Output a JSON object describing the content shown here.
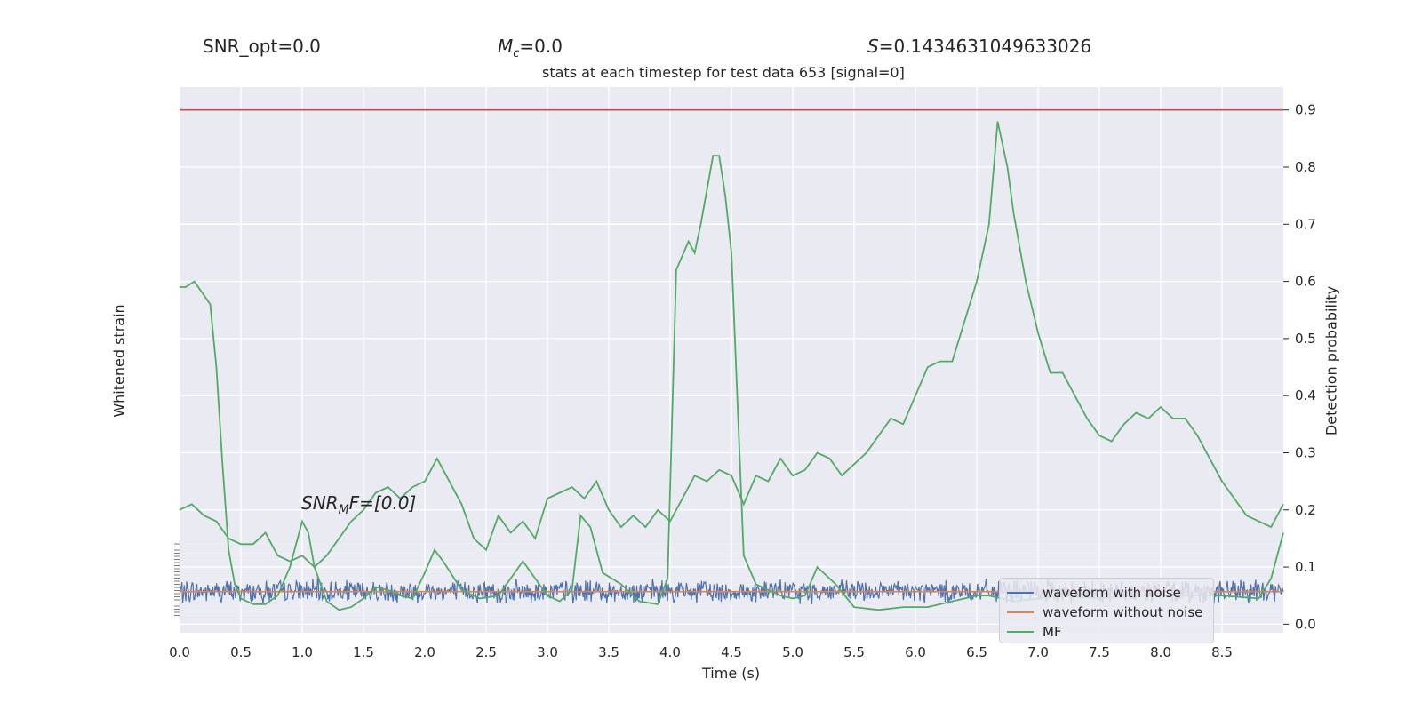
{
  "header": {
    "snr_opt": "SNR_opt=0.0",
    "mc_sym": "M",
    "mc_sub": "c",
    "mc_val": "=0.0",
    "s_sym": "S",
    "s_val": "=0.1434631049633026"
  },
  "annotation": {
    "snr_mf_prefix": "SNR",
    "snr_mf_sub": "M",
    "snr_mf_rest": "F=[0.0]"
  },
  "chart_data": {
    "type": "line",
    "title": "stats at each timestep for test data 653 [signal=0]",
    "xlabel": "Time (s)",
    "ylabel_left": "Whitened strain",
    "ylabel_right": "Detection probability",
    "xlim": [
      0.0,
      9.0
    ],
    "ylim_right": [
      -0.015,
      0.94
    ],
    "x_ticks": [
      "0.0",
      "0.5",
      "1.0",
      "1.5",
      "2.0",
      "2.5",
      "3.0",
      "3.5",
      "4.0",
      "4.5",
      "5.0",
      "5.5",
      "6.0",
      "6.5",
      "7.0",
      "7.5",
      "8.0",
      "8.5"
    ],
    "y_ticks_right": [
      "0.0",
      "0.1",
      "0.2",
      "0.3",
      "0.4",
      "0.5",
      "0.6",
      "0.7",
      "0.8",
      "0.9"
    ],
    "threshold": 0.9,
    "threshold_color": "#c44e52",
    "grid": true,
    "legend_position": "bottom-right",
    "series": [
      {
        "name": "waveform with noise",
        "color": "#4c72b0",
        "amplitude_right_units": 0.018,
        "center": 0.057
      },
      {
        "name": "waveform without noise",
        "color": "#dd8452",
        "value": 0.057
      },
      {
        "name": "MF",
        "color": "#55a868",
        "x": [
          0.0,
          0.05,
          0.12,
          0.25,
          0.3,
          0.35,
          0.4,
          0.45,
          0.5,
          0.6,
          0.7,
          0.8,
          0.9,
          1.0,
          1.05,
          1.1,
          1.2,
          1.3,
          1.4,
          1.5,
          1.6,
          1.7,
          1.8,
          1.9,
          2.0,
          2.08,
          2.15,
          2.3,
          2.45,
          2.6,
          2.8,
          2.9,
          3.0,
          3.1,
          3.2,
          3.27,
          3.35,
          3.45,
          3.6,
          3.75,
          3.9,
          3.98,
          4.05,
          4.15,
          4.2,
          4.25,
          4.35,
          4.4,
          4.45,
          4.5,
          4.6,
          4.7,
          4.8,
          4.9,
          5.0,
          5.1,
          5.2,
          5.35,
          5.5,
          5.7,
          5.9,
          6.1,
          6.3,
          6.5,
          6.6,
          6.7,
          6.8,
          7.0,
          7.2,
          7.5,
          7.8,
          8.2,
          8.5,
          8.8,
          8.9,
          9.0
        ],
        "y": [
          0.59,
          0.59,
          0.6,
          0.56,
          0.45,
          0.28,
          0.13,
          0.07,
          0.045,
          0.035,
          0.035,
          0.05,
          0.1,
          0.18,
          0.16,
          0.1,
          0.04,
          0.025,
          0.03,
          0.045,
          0.065,
          0.06,
          0.05,
          0.045,
          0.09,
          0.13,
          0.11,
          0.06,
          0.045,
          0.05,
          0.11,
          0.08,
          0.05,
          0.04,
          0.06,
          0.19,
          0.17,
          0.09,
          0.07,
          0.04,
          0.035,
          0.08,
          0.62,
          0.67,
          0.65,
          0.7,
          0.82,
          0.82,
          0.75,
          0.65,
          0.12,
          0.07,
          0.06,
          0.05,
          0.045,
          0.05,
          0.1,
          0.07,
          0.03,
          0.025,
          0.03,
          0.03,
          0.04,
          0.05,
          0.05,
          0.045,
          0.04,
          0.045,
          0.05,
          0.045,
          0.05,
          0.05,
          0.05,
          0.045,
          0.08,
          0.16
        ]
      },
      {
        "name": "Detection probability",
        "color": "#55a868",
        "x": [
          0.0,
          0.1,
          0.2,
          0.3,
          0.4,
          0.5,
          0.6,
          0.7,
          0.8,
          0.9,
          1.0,
          1.1,
          1.2,
          1.3,
          1.4,
          1.5,
          1.6,
          1.7,
          1.8,
          1.9,
          2.0,
          2.1,
          2.2,
          2.3,
          2.4,
          2.5,
          2.6,
          2.7,
          2.8,
          2.9,
          3.0,
          3.1,
          3.2,
          3.3,
          3.4,
          3.5,
          3.6,
          3.7,
          3.8,
          3.9,
          4.0,
          4.1,
          4.2,
          4.3,
          4.4,
          4.5,
          4.6,
          4.7,
          4.8,
          4.9,
          5.0,
          5.1,
          5.2,
          5.3,
          5.4,
          5.5,
          5.6,
          5.7,
          5.8,
          5.9,
          6.0,
          6.1,
          6.2,
          6.3,
          6.4,
          6.5,
          6.6,
          6.67,
          6.75,
          6.8,
          6.9,
          7.0,
          7.1,
          7.2,
          7.3,
          7.4,
          7.5,
          7.6,
          7.7,
          7.8,
          7.9,
          8.0,
          8.1,
          8.2,
          8.3,
          8.4,
          8.5,
          8.6,
          8.7,
          8.8,
          8.9,
          9.0
        ],
        "y": [
          0.2,
          0.21,
          0.19,
          0.18,
          0.15,
          0.14,
          0.14,
          0.16,
          0.12,
          0.11,
          0.12,
          0.1,
          0.12,
          0.15,
          0.18,
          0.2,
          0.23,
          0.24,
          0.22,
          0.24,
          0.25,
          0.29,
          0.25,
          0.21,
          0.15,
          0.13,
          0.19,
          0.16,
          0.18,
          0.15,
          0.22,
          0.23,
          0.24,
          0.22,
          0.25,
          0.2,
          0.17,
          0.19,
          0.17,
          0.2,
          0.18,
          0.22,
          0.26,
          0.25,
          0.27,
          0.26,
          0.21,
          0.26,
          0.25,
          0.29,
          0.26,
          0.27,
          0.3,
          0.29,
          0.26,
          0.28,
          0.3,
          0.33,
          0.36,
          0.35,
          0.4,
          0.45,
          0.46,
          0.46,
          0.53,
          0.6,
          0.7,
          0.88,
          0.8,
          0.72,
          0.6,
          0.51,
          0.44,
          0.44,
          0.4,
          0.36,
          0.33,
          0.32,
          0.35,
          0.37,
          0.36,
          0.38,
          0.36,
          0.36,
          0.33,
          0.29,
          0.25,
          0.22,
          0.19,
          0.18,
          0.17,
          0.21
        ]
      }
    ]
  }
}
